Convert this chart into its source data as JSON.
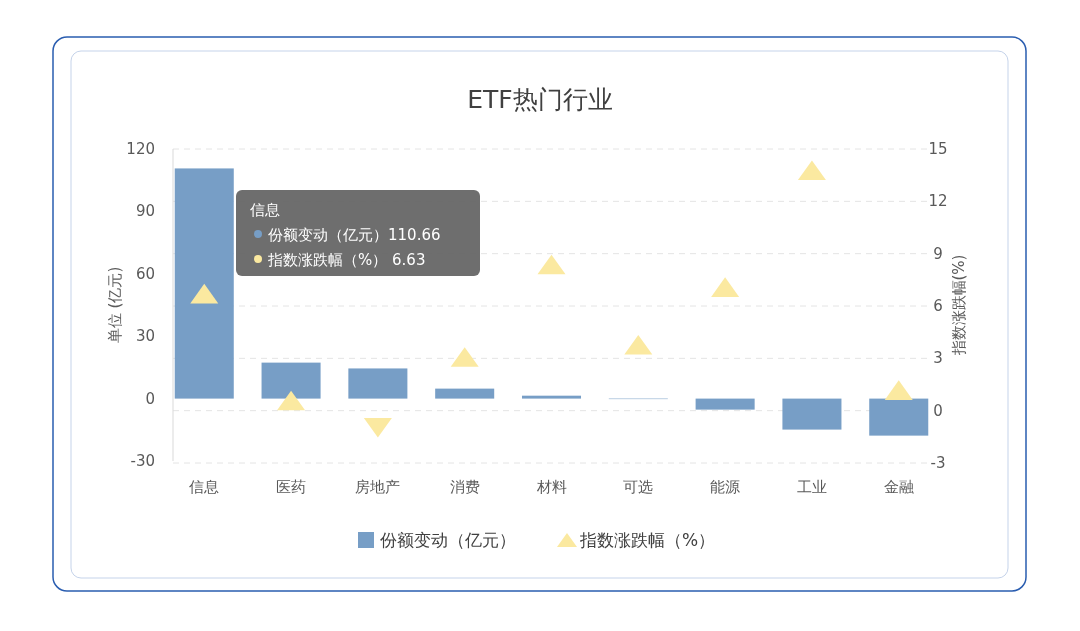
{
  "chart_data": {
    "type": "bar",
    "title": "ETF热门行业",
    "ylabel": "单位 (亿元)",
    "y2label": "指数涨跌幅(%)",
    "categories": [
      "信息",
      "医药",
      "房地产",
      "消费",
      "材料",
      "可选",
      "能源",
      "工业",
      "金融"
    ],
    "series": [
      {
        "name": "份额变动（亿元）",
        "color": "#779ec6",
        "values": [
          110.66,
          17.3,
          14.5,
          4.8,
          1.4,
          0,
          -5.3,
          -14.9,
          -17.8
        ]
      },
      {
        "name": "指数涨跌幅（%）",
        "type": "scatter",
        "axis": "y2",
        "marker": "triangle",
        "color": "#fbe9a0",
        "values": [
          6.63,
          0.5,
          -0.9,
          3.0,
          8.3,
          3.7,
          7.0,
          13.7,
          1.1
        ]
      }
    ],
    "ylim": [
      -30,
      120
    ],
    "yticks": [
      -30,
      0,
      30,
      60,
      90,
      120
    ],
    "y2lim": [
      -3,
      15
    ],
    "y2ticks": [
      -3,
      0,
      3,
      6,
      9,
      12,
      15
    ],
    "grid": "y2",
    "legend": "bottom",
    "annotations": [
      "信息",
      "份额变动（亿元）110.66",
      "指数涨跌幅（%） 6.63"
    ]
  }
}
